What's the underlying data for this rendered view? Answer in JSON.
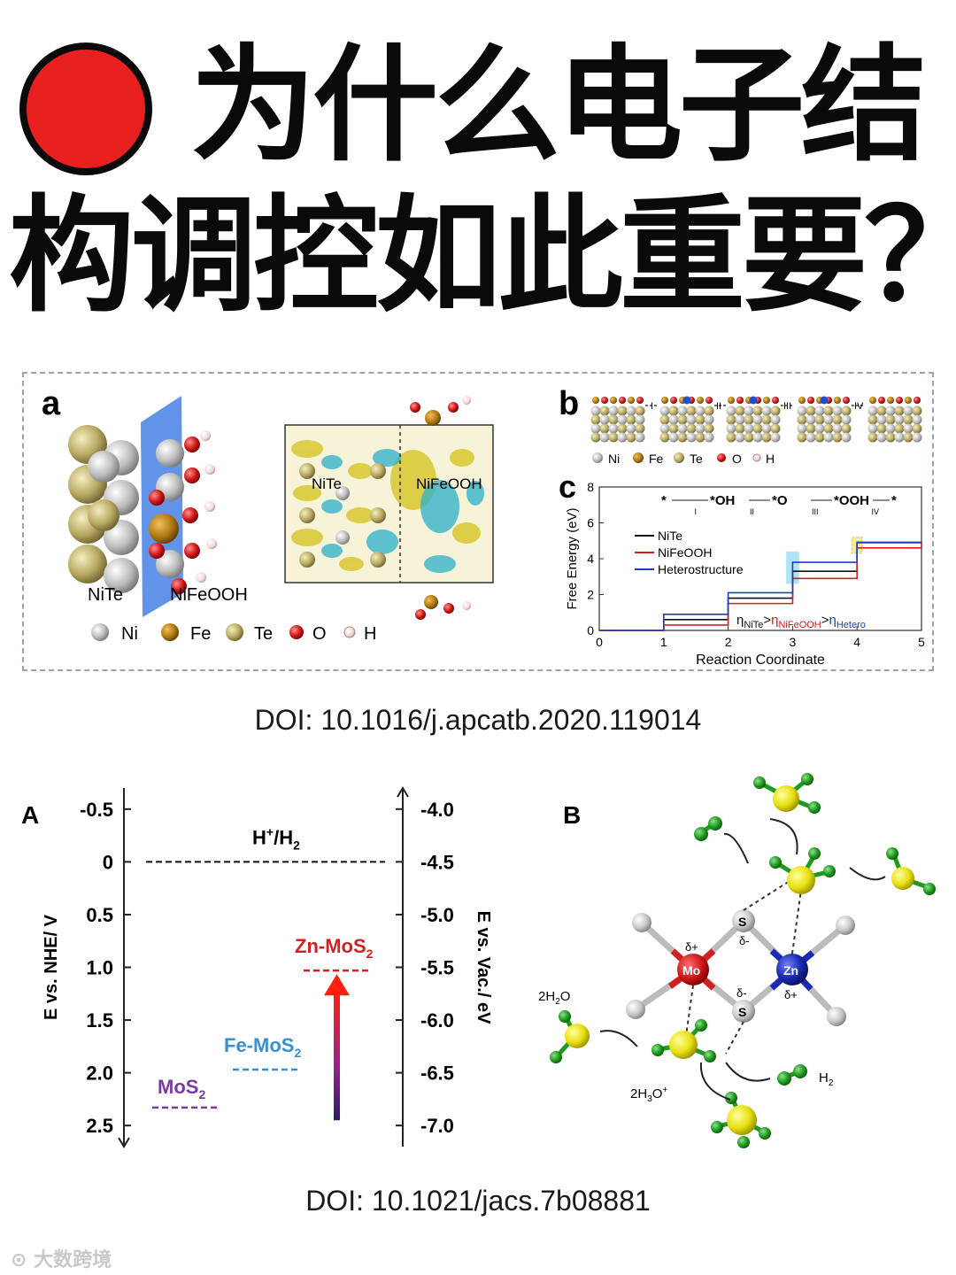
{
  "title": {
    "line1": "为什么电子结",
    "line2": "构调控如此重要？"
  },
  "figure1": {
    "panel_a": {
      "label": "a",
      "left_slab_label_1": "NiTe",
      "left_slab_label_2": "NiFeOOH",
      "charge_box_label_1": "NiTe",
      "charge_box_label_2": "NiFeOOH",
      "legend": [
        "Ni",
        "Fe",
        "Te",
        "O",
        "H"
      ]
    },
    "panel_b": {
      "label": "b",
      "steps": [
        "I",
        "II",
        "III",
        "IV"
      ],
      "legend": [
        "Ni",
        "Fe",
        "Te",
        "O",
        "H"
      ]
    },
    "panel_c": {
      "label": "c",
      "ylabel": "Free Energy (eV)",
      "xlabel": "Reaction Coordinate",
      "reaction_text": [
        "*",
        "*OH",
        "*O",
        "*OOH",
        "*"
      ],
      "reaction_steps": [
        "I",
        "II",
        "III",
        "IV"
      ],
      "legend": [
        "NiTe",
        "NiFeOOH",
        "Heterostructure"
      ],
      "eta_nite": "η",
      "eta_nite_sub": "NiTe",
      "eta_nifeooh": "η",
      "eta_nifeooh_sub": "NiFeOOH",
      "eta_hetero": "η",
      "eta_hetero_sub": "Hetero",
      "gt": ">"
    }
  },
  "doi1": "DOI: 10.1016/j.apcatb.2020.119014",
  "figure2": {
    "panel_a": {
      "label": "A",
      "left_axis_label": "E vs. NHE/ V",
      "right_axis_label": "E vs. Vac./ eV",
      "hh2_label": "H",
      "hh2_sup": "+",
      "hh2_mid": "/H",
      "hh2_sub": "2",
      "mos2": "MoS",
      "femos2": "Fe-MoS",
      "znmos2": "Zn-MoS",
      "sub2": "2"
    },
    "panel_b": {
      "label": "B",
      "mo": "Mo",
      "zn": "Zn",
      "s": "S",
      "delta_plus": "δ+",
      "delta_minus": "δ-",
      "h2o_label": "2H",
      "h2o_sub": "2",
      "h2o_tail": "O",
      "h3o_label": "2H",
      "h3o_sub": "3",
      "h3o_tail": "O",
      "h3o_sup": "+",
      "h2_label": "H",
      "h2_sub": "2"
    }
  },
  "doi2": "DOI: 10.1021/jacs.7b08881",
  "chart_data": [
    {
      "type": "line",
      "title": "",
      "xlabel": "Reaction Coordinate",
      "ylabel": "Free Energy (eV)",
      "xlim": [
        0,
        5
      ],
      "ylim": [
        0,
        8
      ],
      "xticks": [
        0,
        1,
        2,
        3,
        4,
        5
      ],
      "yticks": [
        0,
        2,
        4,
        6,
        8
      ],
      "series": [
        {
          "name": "NiTe",
          "color": "#111111",
          "x": [
            0,
            1,
            2,
            3,
            4,
            5
          ],
          "y": [
            0,
            0.6,
            1.8,
            3.3,
            4.9,
            4.92
          ]
        },
        {
          "name": "NiFeOOH",
          "color": "#d42020",
          "x": [
            0,
            1,
            2,
            3,
            4,
            5
          ],
          "y": [
            0,
            0.3,
            1.5,
            2.9,
            4.6,
            4.92
          ]
        },
        {
          "name": "Heterostructure",
          "color": "#1f3fbf",
          "x": [
            0,
            1,
            2,
            3,
            4,
            5
          ],
          "y": [
            0,
            0.9,
            2.1,
            3.8,
            4.92,
            4.92
          ]
        }
      ],
      "legend_position": "top-left"
    },
    {
      "type": "scatter",
      "title": "",
      "ylabel": "E vs. NHE/ V",
      "y2label": "E vs. Vac./ eV",
      "ylim": [
        -0.7,
        2.7
      ],
      "yticks": [
        -0.5,
        0,
        0.5,
        1.0,
        1.5,
        2.0,
        2.5
      ],
      "ytick_labels": [
        "-0.5",
        "0",
        "0.5",
        "1.0",
        "1.5",
        "2.0",
        "2.5"
      ],
      "y2ticks": [
        -4.0,
        -4.5,
        -5.0,
        -5.5,
        -6.0,
        -6.5,
        -7.0
      ],
      "y2tick_labels": [
        "-4.0",
        "-4.5",
        "-5.0",
        "-5.5",
        "-6.0",
        "-6.5",
        "-7.0"
      ],
      "levels": [
        {
          "name": "H+/H2",
          "value": 0,
          "color": "#111111"
        },
        {
          "name": "MoS2",
          "value": 2.33,
          "color": "#7a3aa8"
        },
        {
          "name": "Fe-MoS2",
          "value": 1.97,
          "color": "#3a8fd0"
        },
        {
          "name": "Zn-MoS2",
          "value": 1.03,
          "color": "#d42020"
        }
      ]
    }
  ]
}
